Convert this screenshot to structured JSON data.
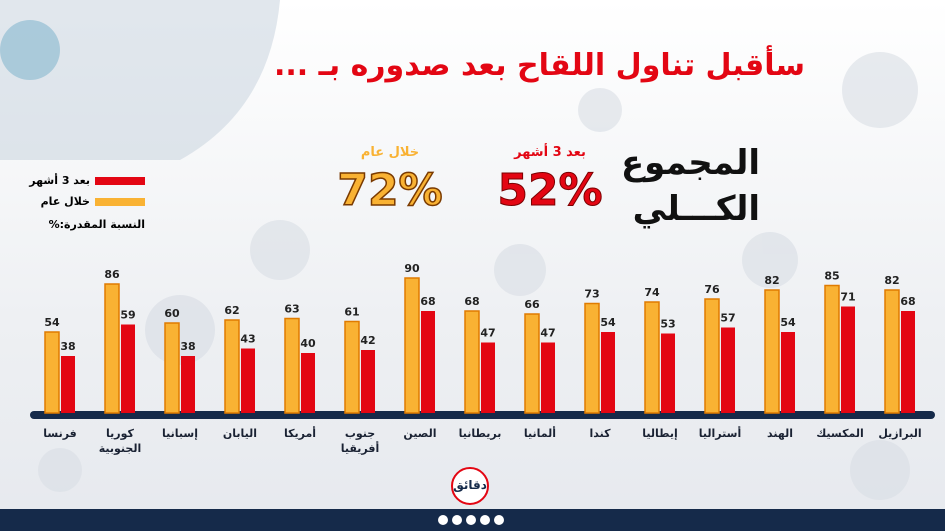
{
  "header": {
    "title": "سأقبل تناول اللقاح بعد صدوره بـ ..."
  },
  "totals": {
    "label": "المجموع الكـــلي",
    "items": [
      {
        "name": "بعد 3 أشهر",
        "text": "52%",
        "color": "#e30613"
      },
      {
        "name": "خلال عام",
        "text": "72%",
        "color": "#f9b233"
      }
    ]
  },
  "legend_note": "النسبة المقدرة:%",
  "logo": "دقائق",
  "chart_data": {
    "type": "bar",
    "categories": [
      "فرنسا",
      "كوريا الجنوبية",
      "إسبانيا",
      "اليابان",
      "أمريكا",
      "جنوب أفريقيا",
      "الصين",
      "بريطانيا",
      "ألمانيا",
      "كندا",
      "إيطاليا",
      "أستراليا",
      "الهند",
      "المكسيك",
      "البرازيل"
    ],
    "series": [
      {
        "name": "خلال عام",
        "color": "#f9b233",
        "values": [
          54,
          86,
          60,
          62,
          63,
          61,
          90,
          68,
          66,
          73,
          74,
          76,
          82,
          85,
          82
        ]
      },
      {
        "name": "بعد 3 أشهر",
        "color": "#e30613",
        "values": [
          38,
          59,
          38,
          43,
          40,
          42,
          68,
          47,
          47,
          54,
          53,
          57,
          54,
          71,
          68
        ]
      }
    ],
    "ylim": [
      0,
      100
    ]
  }
}
